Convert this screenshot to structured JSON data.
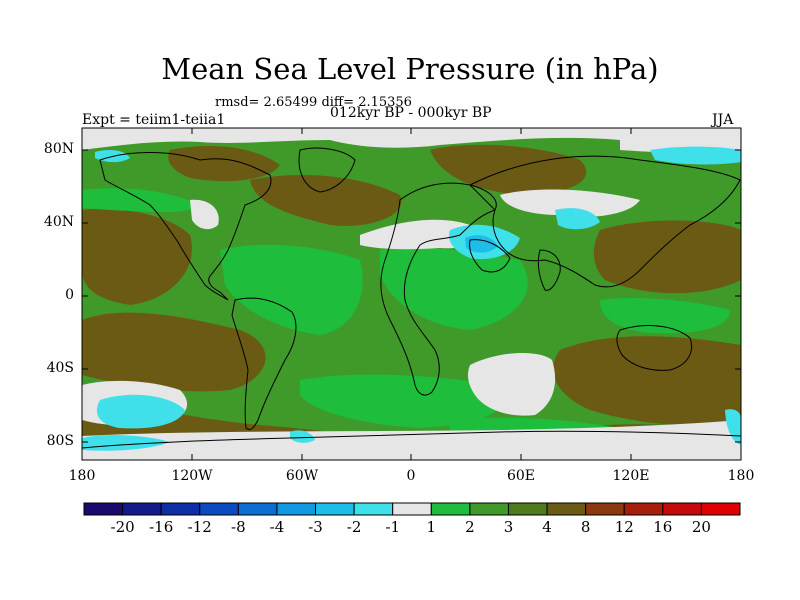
{
  "title": "Mean Sea Level Pressure (in hPa)",
  "stats_line": "rmsd= 2.65499 diff= 2.15356",
  "experiment": "Expt = teiim1-teiia1",
  "subtitle": "012kyr BP - 000kyr BP",
  "season": "JJA",
  "axes": {
    "x_ticks": [
      "180",
      "120W",
      "60W",
      "0",
      "60E",
      "120E",
      "180"
    ],
    "y_ticks": [
      "80N",
      "40N",
      "0",
      "40S",
      "80S"
    ]
  },
  "colorbar": {
    "labels": [
      "-20",
      "-16",
      "-12",
      "-8",
      "-4",
      "-3",
      "-2",
      "-1",
      "1",
      "2",
      "3",
      "4",
      "8",
      "12",
      "16",
      "20"
    ],
    "colors": [
      "#1a0a6e",
      "#131a8c",
      "#0d2fa6",
      "#0a4bbf",
      "#0a6fd1",
      "#1098e0",
      "#1ebde8",
      "#3fe0ea",
      "#e6e6e6",
      "#1ebd3c",
      "#3f9a2a",
      "#4f7a1e",
      "#6b5a14",
      "#8a3a0e",
      "#a81e0a",
      "#c40a0a",
      "#e00000"
    ]
  },
  "field_colors": {
    "ocean_base": "#3f9a2a",
    "positive_mid": "#6b5a14",
    "positive_light": "#1ebd3c",
    "neutral": "#e6e6e6",
    "negative_weak": "#3fe0ea",
    "negative_mid": "#1ebde8"
  }
}
